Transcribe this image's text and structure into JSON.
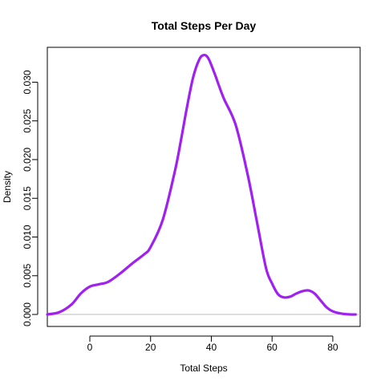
{
  "chart_data": {
    "type": "line",
    "title": "Total Steps Per Day",
    "xlabel": "Total Steps",
    "ylabel": "Density",
    "xlim": [
      -14,
      89
    ],
    "ylim": [
      -0.00155,
      0.0345
    ],
    "xticks": [
      0,
      20,
      40,
      60,
      80
    ],
    "xtick_labels": [
      "0",
      "20",
      "40",
      "60",
      "80"
    ],
    "yticks": [
      0,
      0.005,
      0.01,
      0.015,
      0.02,
      0.025,
      0.03
    ],
    "ytick_labels": [
      "0.000",
      "0.005",
      "0.010",
      "0.015",
      "0.020",
      "0.025",
      "0.030"
    ],
    "grid": false,
    "reference_line_y": 0,
    "series": [
      {
        "color": "#a020f0",
        "x": [
          -14,
          -10,
          -6,
          -3,
          0,
          3,
          6,
          10,
          14,
          18,
          20,
          24,
          28,
          30,
          32,
          34,
          36,
          37.5,
          39,
          41,
          44,
          48,
          52,
          55,
          58,
          60,
          62,
          64,
          66,
          68,
          70,
          72,
          74,
          76,
          78,
          80,
          83,
          86,
          87.5
        ],
        "y": [
          0.0,
          0.0003,
          0.0013,
          0.0027,
          0.0036,
          0.0039,
          0.0042,
          0.0053,
          0.0066,
          0.0078,
          0.0087,
          0.0122,
          0.0185,
          0.0225,
          0.0268,
          0.0306,
          0.0329,
          0.0335,
          0.0331,
          0.0312,
          0.028,
          0.0245,
          0.018,
          0.012,
          0.006,
          0.004,
          0.0026,
          0.0022,
          0.0023,
          0.0027,
          0.003,
          0.0031,
          0.0027,
          0.0018,
          0.0009,
          0.0004,
          0.0001,
          0.0,
          0.0
        ]
      }
    ]
  }
}
